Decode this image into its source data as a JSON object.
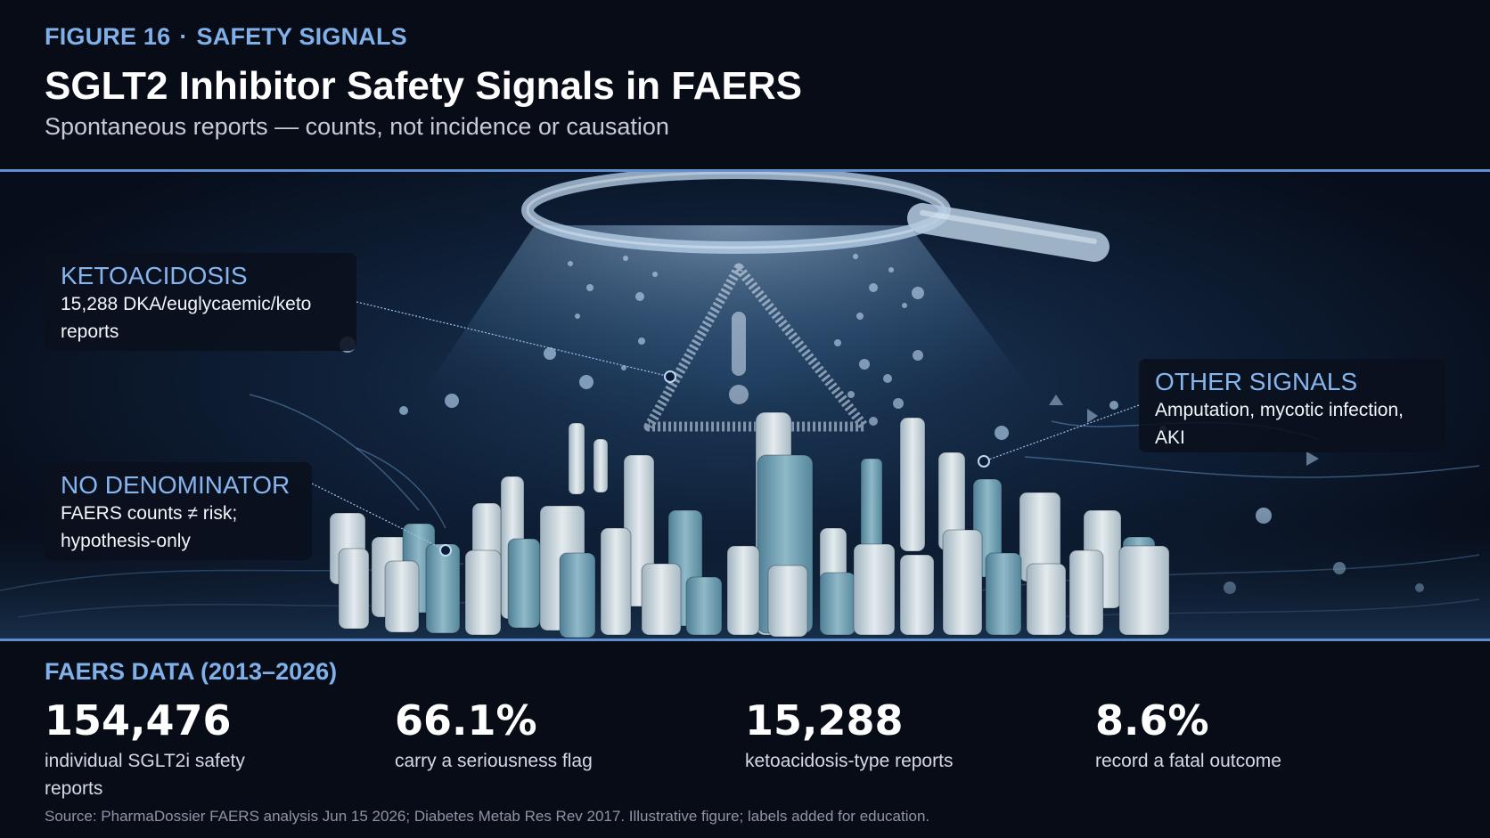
{
  "header": {
    "figure_label": "FIGURE 16",
    "separator": "·",
    "section_label": "SAFETY SIGNALS",
    "title": "SGLT2 Inhibitor Safety Signals in FAERS",
    "subtitle": "Spontaneous reports — counts, not incidence or causation"
  },
  "callouts": [
    {
      "title": "KETOACIDOSIS",
      "body": "15,288 DKA/euglycaemic/keto reports"
    },
    {
      "title": "NO DENOMINATOR",
      "body": "FAERS counts ≠ risk; hypothesis-only"
    },
    {
      "title": "OTHER SIGNALS",
      "body": "Amputation, mycotic infection, AKI"
    }
  ],
  "illustration": {
    "icons": [
      "magnifying-glass-icon",
      "warning-triangle-icon",
      "pill-tablets-icon"
    ],
    "colors": {
      "accent": "#7fb0ea",
      "background": "#080c16",
      "rule": "#5f8fd0"
    }
  },
  "stats": {
    "section_label": "FAERS DATA (2013–2026)",
    "items": [
      {
        "value": "154,476",
        "label": "individual SGLT2i safety reports"
      },
      {
        "value": "66.1%",
        "label": "carry a seriousness flag"
      },
      {
        "value": "15,288",
        "label": "ketoacidosis-type reports"
      },
      {
        "value": "8.6%",
        "label": "record a fatal outcome"
      }
    ]
  },
  "source": "Source: PharmaDossier FAERS analysis Jun 15 2026; Diabetes Metab Res Rev 2017. Illustrative figure; labels added for education."
}
